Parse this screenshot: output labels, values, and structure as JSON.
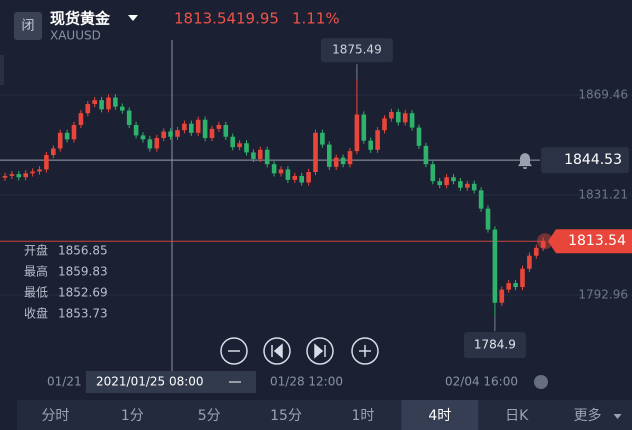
{
  "header": {
    "close_icon": "闭",
    "name": "现货黄金",
    "symbol": "XAUUSD",
    "price": 1813.54,
    "change": 19.95,
    "change_pct": {
      "value": 1.11,
      "label": "1.11%"
    }
  },
  "chart_data": {
    "type": "candlestick",
    "up_color": "#e8463a",
    "down_color": "#2fb36c",
    "ylim": [
      1764.27,
      1890.5
    ],
    "yticks": [
      1869.46,
      1831.21,
      1792.96
    ],
    "max_label": 1875.49,
    "min_label": 1784.9,
    "alert_price": 1844.53,
    "current_price": 1813.54,
    "crosshair_time": "2021/01/25 08:00",
    "x_labels": [
      "01/21",
      "01/28 12:00",
      "02/04 16:00"
    ],
    "info": [
      {
        "label": "开盘",
        "value": 1856.85
      },
      {
        "label": "最高",
        "value": 1859.83
      },
      {
        "label": "最低",
        "value": 1852.69
      },
      {
        "label": "收盘",
        "value": 1853.73
      }
    ],
    "series": [
      {
        "name": "XAUUSD",
        "values": [
          [
            1837.8,
            1839.7,
            1836.6,
            1838.5
          ],
          [
            1838.5,
            1840.4,
            1837.3,
            1839.2
          ],
          [
            1839.2,
            1840.4,
            1836.8,
            1838.0
          ],
          [
            1838.0,
            1840.7,
            1836.8,
            1839.5
          ],
          [
            1839.5,
            1841.4,
            1838.3,
            1840.2
          ],
          [
            1840.2,
            1842.2,
            1839.0,
            1841.0
          ],
          [
            1841.0,
            1847.7,
            1839.8,
            1846.5
          ],
          [
            1846.5,
            1850.2,
            1845.3,
            1849.0
          ],
          [
            1849.0,
            1856.2,
            1847.8,
            1855.0
          ],
          [
            1855.0,
            1856.2,
            1851.3,
            1852.5
          ],
          [
            1852.5,
            1859.2,
            1851.3,
            1858.0
          ],
          [
            1858.0,
            1863.7,
            1856.8,
            1862.5
          ],
          [
            1862.5,
            1867.2,
            1861.3,
            1866.0
          ],
          [
            1866.0,
            1868.7,
            1864.8,
            1867.5
          ],
          [
            1867.5,
            1868.7,
            1862.8,
            1864.0
          ],
          [
            1864.0,
            1869.7,
            1862.8,
            1868.5
          ],
          [
            1868.5,
            1869.7,
            1863.8,
            1865.0
          ],
          [
            1865.0,
            1866.2,
            1862.3,
            1863.5
          ],
          [
            1863.5,
            1864.7,
            1856.8,
            1858.0
          ],
          [
            1858.0,
            1859.2,
            1852.8,
            1854.0
          ],
          [
            1854.0,
            1855.2,
            1851.3,
            1852.5
          ],
          [
            1852.5,
            1853.7,
            1847.8,
            1849.0
          ],
          [
            1849.0,
            1854.2,
            1847.8,
            1853.0
          ],
          [
            1853.0,
            1856.7,
            1851.8,
            1855.5
          ],
          [
            1855.5,
            1856.7,
            1852.3,
            1853.5
          ],
          [
            1853.5,
            1857.2,
            1852.3,
            1856.0
          ],
          [
            1856.0,
            1859.7,
            1854.8,
            1858.5
          ],
          [
            1858.5,
            1859.7,
            1853.8,
            1855.0
          ],
          [
            1855.0,
            1861.2,
            1853.8,
            1860.0
          ],
          [
            1860.0,
            1861.2,
            1851.8,
            1853.0
          ],
          [
            1853.0,
            1857.7,
            1851.8,
            1856.5
          ],
          [
            1856.5,
            1859.2,
            1855.3,
            1858.0
          ],
          [
            1858.0,
            1859.2,
            1852.3,
            1853.5
          ],
          [
            1853.5,
            1854.7,
            1848.3,
            1849.5
          ],
          [
            1849.5,
            1852.2,
            1848.3,
            1851.0
          ],
          [
            1851.0,
            1852.2,
            1846.3,
            1847.5
          ],
          [
            1847.5,
            1848.7,
            1843.8,
            1845.0
          ],
          [
            1845.0,
            1849.7,
            1843.8,
            1848.5
          ],
          [
            1848.5,
            1849.7,
            1841.8,
            1843.0
          ],
          [
            1843.0,
            1844.2,
            1838.3,
            1839.5
          ],
          [
            1839.5,
            1842.2,
            1838.3,
            1841.0
          ],
          [
            1841.0,
            1842.2,
            1835.8,
            1837.0
          ],
          [
            1837.0,
            1839.7,
            1835.8,
            1838.5
          ],
          [
            1838.5,
            1839.7,
            1834.8,
            1836.0
          ],
          [
            1836.0,
            1841.2,
            1834.8,
            1840.0
          ],
          [
            1840.0,
            1856.2,
            1838.8,
            1855.0
          ],
          [
            1855.0,
            1856.2,
            1849.3,
            1850.5
          ],
          [
            1850.5,
            1851.7,
            1840.8,
            1842.0
          ],
          [
            1842.0,
            1846.7,
            1840.8,
            1845.5
          ],
          [
            1845.5,
            1846.7,
            1841.8,
            1843.0
          ],
          [
            1843.0,
            1849.2,
            1841.8,
            1848.0
          ],
          [
            1848.0,
            1875.49,
            1846.8,
            1862.0
          ],
          [
            1862.0,
            1863.2,
            1850.8,
            1852.0
          ],
          [
            1852.0,
            1853.2,
            1847.3,
            1848.5
          ],
          [
            1848.5,
            1857.2,
            1847.3,
            1856.0
          ],
          [
            1856.0,
            1861.7,
            1854.8,
            1860.5
          ],
          [
            1860.5,
            1864.2,
            1859.3,
            1863.0
          ],
          [
            1863.0,
            1864.2,
            1857.8,
            1859.0
          ],
          [
            1859.0,
            1863.7,
            1857.8,
            1862.5
          ],
          [
            1862.5,
            1863.7,
            1855.8,
            1857.0
          ],
          [
            1857.0,
            1858.2,
            1848.8,
            1850.0
          ],
          [
            1850.0,
            1851.2,
            1841.8,
            1843.0
          ],
          [
            1843.0,
            1844.2,
            1835.3,
            1836.5
          ],
          [
            1836.5,
            1837.7,
            1833.8,
            1835.0
          ],
          [
            1835.0,
            1839.2,
            1833.8,
            1838.0
          ],
          [
            1838.0,
            1839.2,
            1835.3,
            1836.5
          ],
          [
            1836.5,
            1837.7,
            1832.8,
            1834.0
          ],
          [
            1834.0,
            1836.7,
            1832.8,
            1835.5
          ],
          [
            1835.5,
            1836.7,
            1831.8,
            1833.0
          ],
          [
            1833.0,
            1834.2,
            1824.8,
            1826.0
          ],
          [
            1826.0,
            1827.2,
            1816.8,
            1818.0
          ],
          [
            1818.0,
            1819.2,
            1784.9,
            1790.0
          ],
          [
            1790.0,
            1796.2,
            1788.8,
            1795.0
          ],
          [
            1795.0,
            1798.7,
            1793.8,
            1797.5
          ],
          [
            1797.5,
            1798.7,
            1794.8,
            1796.0
          ],
          [
            1796.0,
            1804.2,
            1794.8,
            1803.0
          ],
          [
            1803.0,
            1809.2,
            1801.8,
            1808.0
          ],
          [
            1808.0,
            1812.2,
            1806.8,
            1811.0
          ],
          [
            1811.0,
            1815.0,
            1809.8,
            1813.54
          ]
        ]
      }
    ]
  },
  "tabs": {
    "items": [
      "分时",
      "1分",
      "5分",
      "15分",
      "1时",
      "4时",
      "日K",
      "更多"
    ],
    "active": 5
  }
}
